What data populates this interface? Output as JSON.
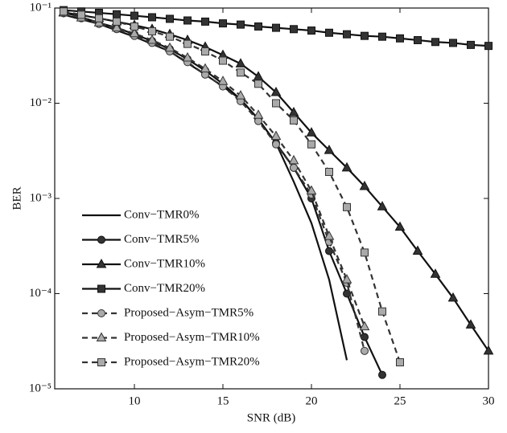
{
  "chart_data": {
    "type": "line",
    "xlabel": "SNR (dB)",
    "ylabel": "BER",
    "log_y": true,
    "xlim": [
      5.5,
      30
    ],
    "xticks": [
      10,
      15,
      20,
      25,
      30
    ],
    "ylim": [
      1e-05,
      0.1
    ],
    "yticks": [
      {
        "value": 0.1,
        "label": "10⁻¹"
      },
      {
        "value": 0.01,
        "label": "10⁻²"
      },
      {
        "value": 0.001,
        "label": "10⁻³"
      },
      {
        "value": 0.0001,
        "label": "10⁻⁴"
      },
      {
        "value": 1e-05,
        "label": "10⁻⁵"
      }
    ],
    "series": [
      {
        "name": "Conv−TMR0%",
        "color": "#111111",
        "dashed": false,
        "marker": "none",
        "marker_fill": "#111111",
        "x": [
          6,
          8,
          10,
          12,
          14,
          15,
          16,
          17,
          18,
          19,
          20,
          21,
          22
        ],
        "values": [
          0.085,
          0.068,
          0.05,
          0.035,
          0.02,
          0.015,
          0.011,
          0.0068,
          0.0038,
          0.0015,
          0.00055,
          0.00014,
          2e-05
        ]
      },
      {
        "name": "Conv−TMR5%",
        "color": "#111111",
        "dashed": false,
        "marker": "circle",
        "marker_fill": "#333333",
        "x": [
          6,
          7,
          8,
          9,
          10,
          11,
          12,
          13,
          14,
          15,
          16,
          17,
          18,
          19,
          20,
          21,
          22,
          23,
          24
        ],
        "values": [
          0.09,
          0.08,
          0.07,
          0.062,
          0.053,
          0.045,
          0.037,
          0.029,
          0.022,
          0.016,
          0.011,
          0.0068,
          0.0038,
          0.0021,
          0.001,
          0.00028,
          0.0001,
          3.5e-05,
          1.4e-05
        ]
      },
      {
        "name": "Conv−TMR10%",
        "color": "#111111",
        "dashed": false,
        "marker": "triangle",
        "marker_fill": "#333333",
        "x": [
          6,
          7,
          8,
          9,
          10,
          11,
          12,
          13,
          14,
          15,
          16,
          17,
          18,
          19,
          20,
          21,
          22,
          23,
          24,
          25,
          26,
          27,
          28,
          29,
          30
        ],
        "values": [
          0.09,
          0.084,
          0.078,
          0.072,
          0.066,
          0.06,
          0.053,
          0.046,
          0.039,
          0.032,
          0.026,
          0.019,
          0.013,
          0.008,
          0.0049,
          0.0032,
          0.0021,
          0.00134,
          0.00082,
          0.0005,
          0.00028,
          0.00016,
          9e-05,
          4.7e-05,
          2.5e-05
        ]
      },
      {
        "name": "Conv−TMR20%",
        "color": "#111111",
        "dashed": false,
        "marker": "square",
        "marker_fill": "#333333",
        "x": [
          6,
          7,
          8,
          9,
          10,
          11,
          12,
          13,
          14,
          15,
          16,
          17,
          18,
          19,
          20,
          21,
          22,
          23,
          24,
          25,
          26,
          27,
          28,
          29,
          30
        ],
        "values": [
          0.095,
          0.092,
          0.089,
          0.086,
          0.083,
          0.08,
          0.077,
          0.074,
          0.072,
          0.069,
          0.067,
          0.064,
          0.062,
          0.06,
          0.058,
          0.055,
          0.053,
          0.051,
          0.05,
          0.048,
          0.046,
          0.044,
          0.043,
          0.041,
          0.04
        ]
      },
      {
        "name": "Proposed−Asym−TMR5%",
        "color": "#333333",
        "dashed": true,
        "marker": "circle",
        "marker_fill": "#aaaaaa",
        "x": [
          6,
          7,
          8,
          9,
          10,
          11,
          12,
          13,
          14,
          15,
          16,
          17,
          18,
          19,
          20,
          21,
          22,
          23
        ],
        "values": [
          0.088,
          0.078,
          0.068,
          0.06,
          0.051,
          0.043,
          0.035,
          0.027,
          0.02,
          0.015,
          0.0105,
          0.0065,
          0.0037,
          0.0021,
          0.0011,
          0.00035,
          0.00013,
          2.5e-05
        ]
      },
      {
        "name": "Proposed−Asym−TMR10%",
        "color": "#333333",
        "dashed": true,
        "marker": "triangle",
        "marker_fill": "#aaaaaa",
        "x": [
          6,
          7,
          8,
          9,
          10,
          11,
          12,
          13,
          14,
          15,
          16,
          17,
          18,
          19,
          20,
          21,
          22,
          23
        ],
        "values": [
          0.089,
          0.079,
          0.07,
          0.062,
          0.054,
          0.046,
          0.038,
          0.03,
          0.023,
          0.017,
          0.012,
          0.0075,
          0.0045,
          0.0025,
          0.0012,
          0.0004,
          0.00014,
          4.5e-05
        ]
      },
      {
        "name": "Proposed−Asym−TMR20%",
        "color": "#333333",
        "dashed": true,
        "marker": "square",
        "marker_fill": "#aaaaaa",
        "x": [
          6,
          7,
          8,
          9,
          10,
          11,
          12,
          13,
          14,
          15,
          16,
          17,
          18,
          19,
          20,
          21,
          22,
          23,
          24,
          25
        ],
        "values": [
          0.092,
          0.085,
          0.078,
          0.072,
          0.064,
          0.057,
          0.05,
          0.042,
          0.035,
          0.028,
          0.021,
          0.016,
          0.01,
          0.0066,
          0.0037,
          0.0019,
          0.00081,
          0.00027,
          6.5e-05,
          1.9e-05
        ]
      }
    ]
  }
}
